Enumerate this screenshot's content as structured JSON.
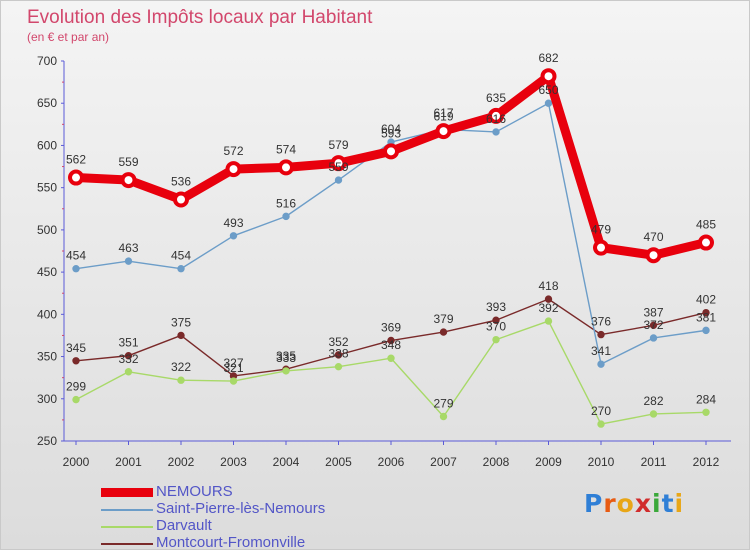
{
  "title": "Evolution des Impôts locaux par Habitant",
  "subtitle": "(en € et par an)",
  "logo": "Proxiti",
  "chart_data": {
    "type": "line",
    "title": "Evolution des Impôts locaux par Habitant",
    "subtitle": "(en € et par an)",
    "xlabel": "",
    "ylabel": "",
    "x": [
      "2000",
      "2001",
      "2002",
      "2003",
      "2004",
      "2005",
      "2006",
      "2007",
      "2008",
      "2009",
      "2010",
      "2011",
      "2012"
    ],
    "ylim": [
      250,
      700
    ],
    "yticks": [
      250,
      300,
      350,
      400,
      450,
      500,
      550,
      600,
      650,
      700
    ],
    "grid": false,
    "legend_position": "bottom-left",
    "series": [
      {
        "name": "NEMOURS",
        "color": "#e8000d",
        "values": [
          562,
          559,
          536,
          572,
          574,
          579,
          593,
          617,
          635,
          682,
          479,
          470,
          485
        ]
      },
      {
        "name": "Saint-Pierre-lès-Nemours",
        "color": "#6c9dc8",
        "values": [
          454,
          463,
          454,
          493,
          516,
          559,
          604,
          619,
          616,
          650,
          341,
          372,
          381
        ]
      },
      {
        "name": "Darvault",
        "color": "#a8d968",
        "values": [
          299,
          332,
          322,
          321,
          333,
          338,
          348,
          279,
          370,
          392,
          270,
          282,
          284
        ]
      },
      {
        "name": "Montcourt-Fromonville",
        "color": "#7a2a2a",
        "values": [
          345,
          351,
          375,
          327,
          335,
          352,
          369,
          379,
          393,
          418,
          376,
          387,
          402
        ]
      }
    ]
  }
}
